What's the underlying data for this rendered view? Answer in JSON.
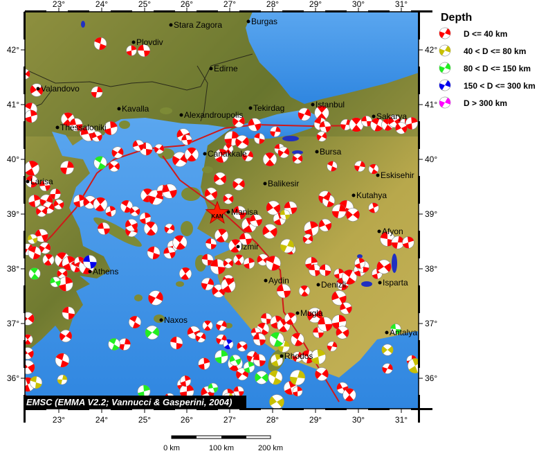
{
  "map": {
    "lon_ticks": [
      "23°",
      "24°",
      "25°",
      "26°",
      "27°",
      "28°",
      "29°",
      "30°",
      "31°"
    ],
    "lat_ticks": [
      "42°",
      "41°",
      "40°",
      "39°",
      "38°",
      "37°",
      "36°"
    ],
    "credit": "EMSC (EMMA V2.2; Vannucci & Gasperini, 2004)",
    "epicenter_label": "KAN",
    "cities": [
      {
        "name": "Stara Zagora"
      },
      {
        "name": "Burgas"
      },
      {
        "name": "Plovdiv"
      },
      {
        "name": "Edirne"
      },
      {
        "name": "Valandovo"
      },
      {
        "name": "Kavalla"
      },
      {
        "name": "Alexandroupolis"
      },
      {
        "name": "Tekirdag"
      },
      {
        "name": "Istanbul"
      },
      {
        "name": "Sakarya"
      },
      {
        "name": "Thessaloniki"
      },
      {
        "name": "Canakkale"
      },
      {
        "name": "Bursa"
      },
      {
        "name": "Eskisehir"
      },
      {
        "name": "Larisa"
      },
      {
        "name": "Balikesir"
      },
      {
        "name": "Kutahya"
      },
      {
        "name": "Manisa"
      },
      {
        "name": "Afyon"
      },
      {
        "name": "Izmir"
      },
      {
        "name": "Athens"
      },
      {
        "name": "Aydin"
      },
      {
        "name": "Denizli"
      },
      {
        "name": "Isparta"
      },
      {
        "name": "Mugla"
      },
      {
        "name": "Naxos"
      },
      {
        "name": "Antalya"
      },
      {
        "name": "Rhodos"
      }
    ]
  },
  "scale_bar": {
    "labels": [
      "0 km",
      "100 km",
      "200 km"
    ]
  },
  "legend": {
    "title": "Depth",
    "items": [
      {
        "label": "D <= 40 km",
        "color": "#ff0000"
      },
      {
        "label": "40 < D <= 80 km",
        "color": "#c8c000"
      },
      {
        "label": "80 < D <= 150 km",
        "color": "#22ee22"
      },
      {
        "label": "150 < D <= 300 km",
        "color": "#0000ee"
      },
      {
        "label": "D > 300 km",
        "color": "#ff00ff"
      }
    ]
  },
  "colors": {
    "sea": "#3d8fe0",
    "land": "#8a8a3a",
    "fault": "#d01818"
  }
}
